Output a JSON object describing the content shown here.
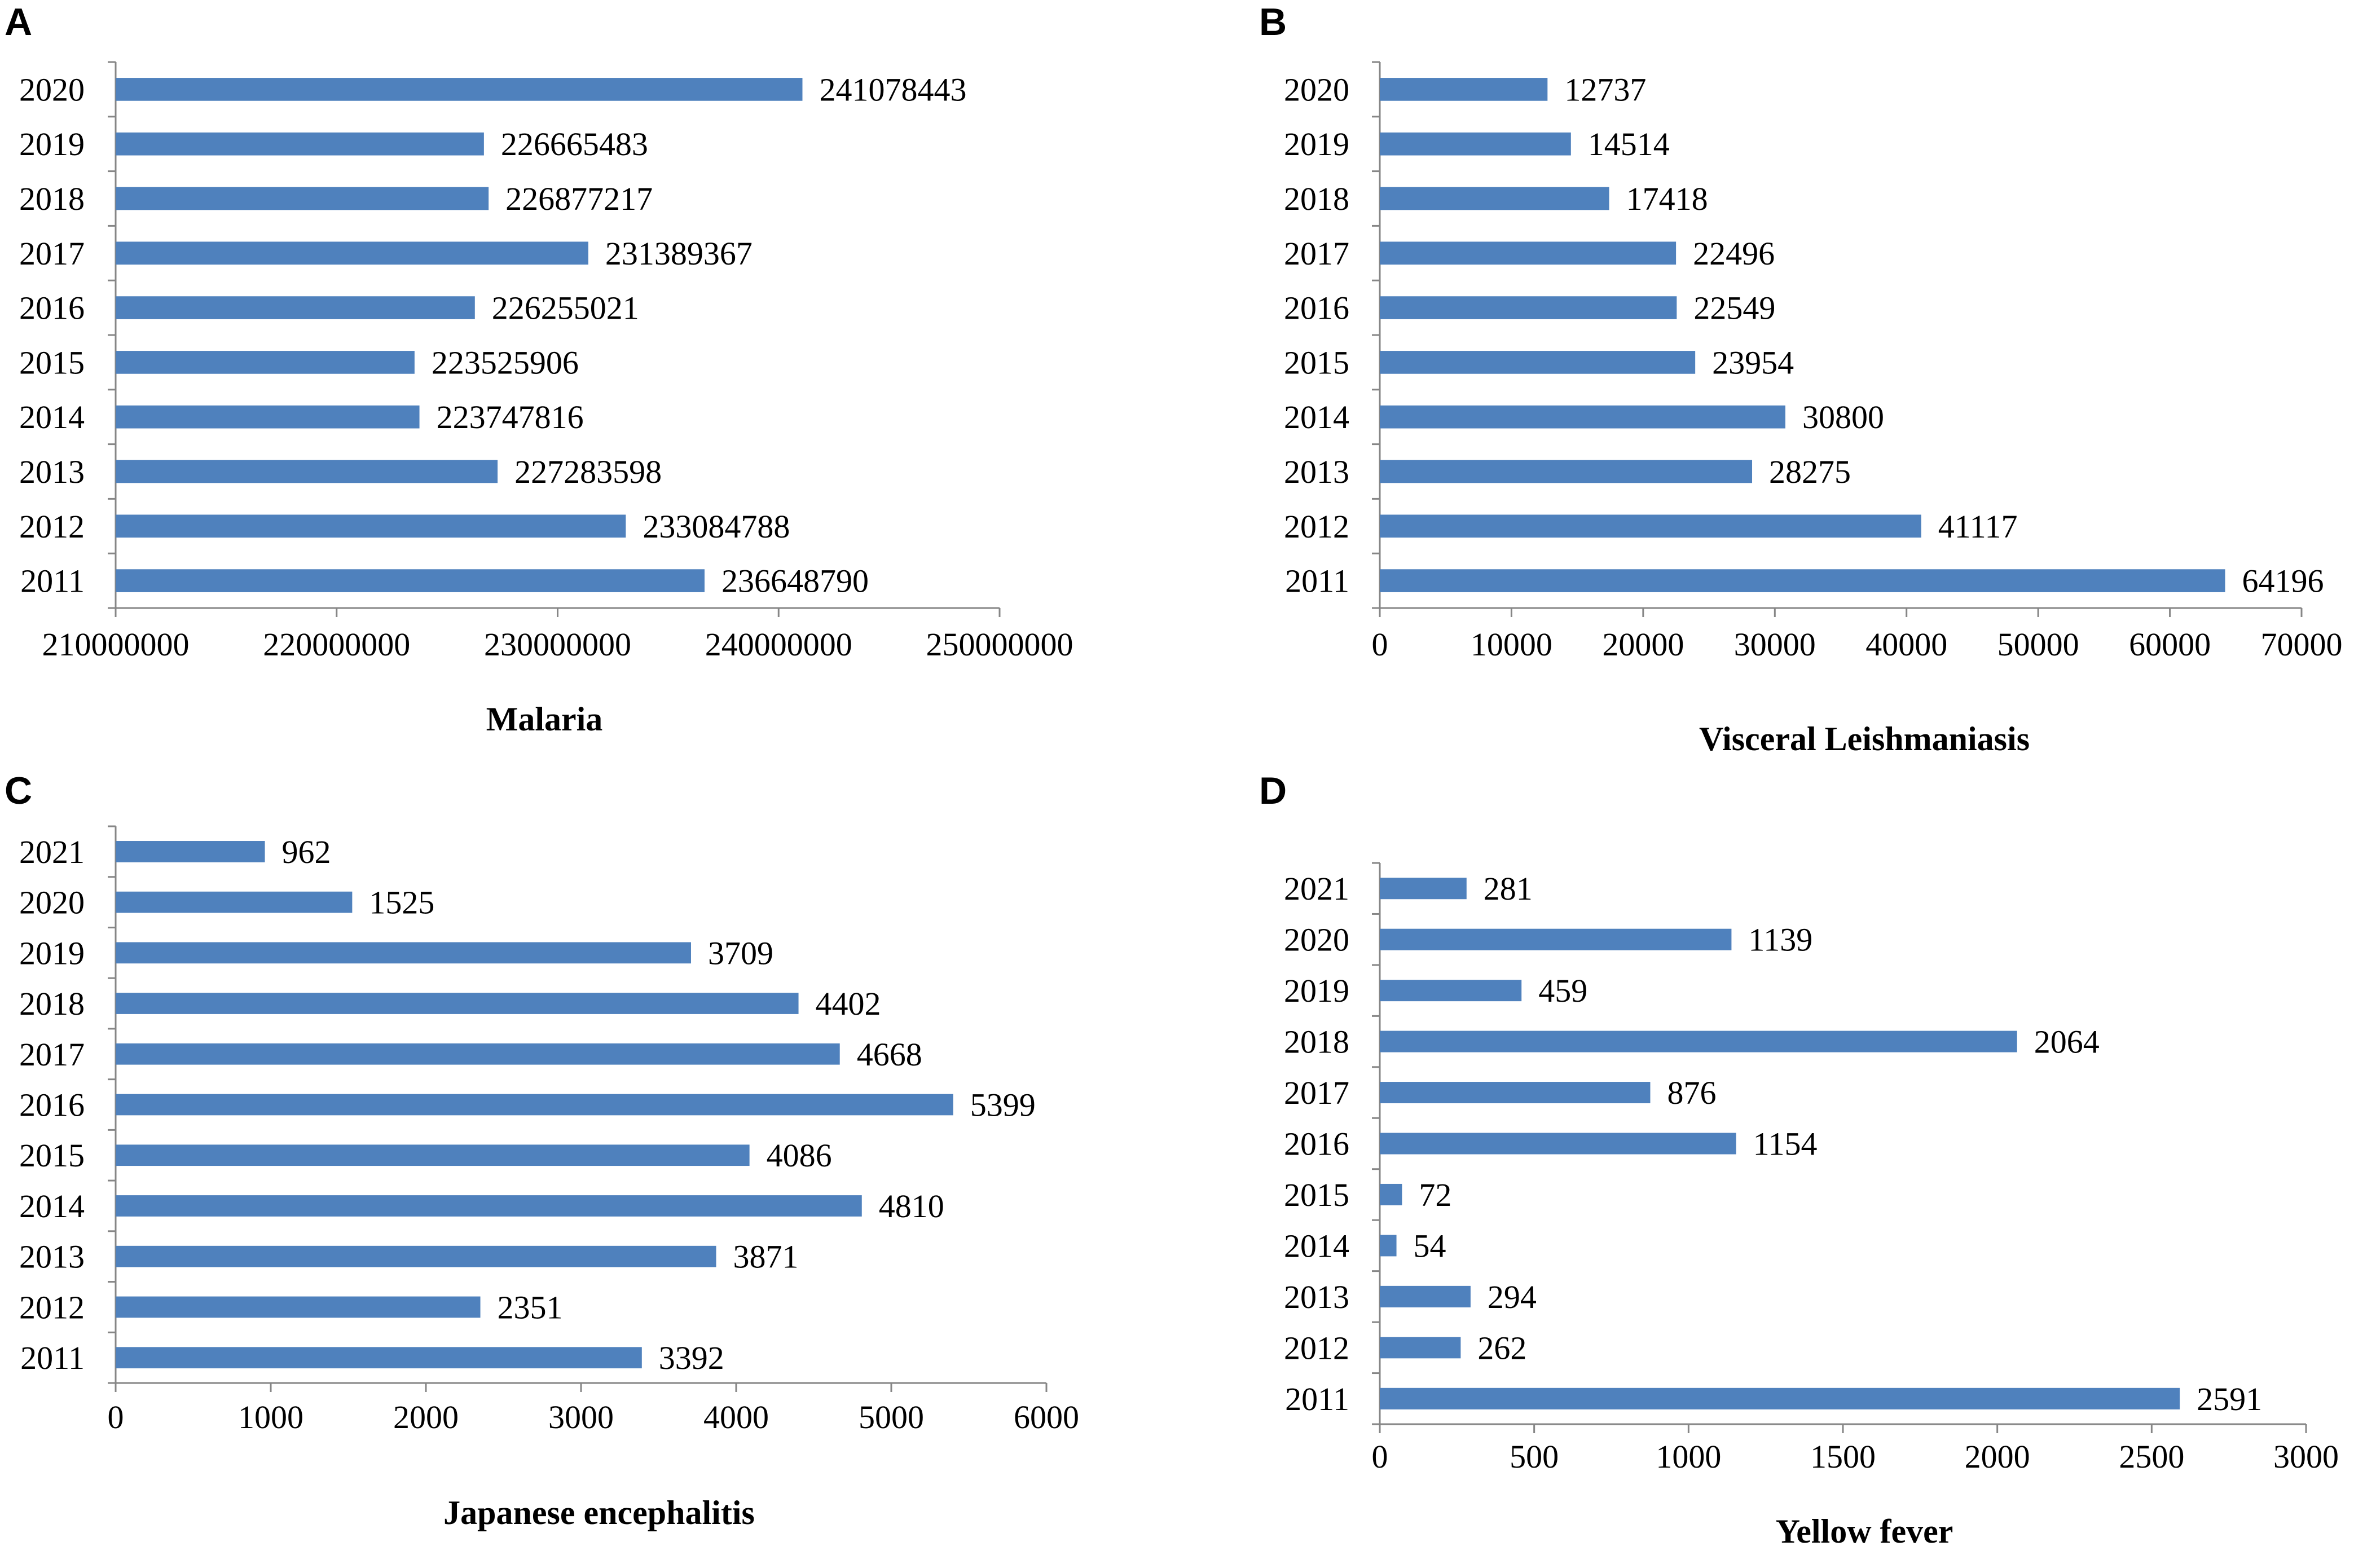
{
  "bar_color": "#4f81bd",
  "axis_color": "#868686",
  "chart_data": [
    {
      "panel_label": "A",
      "type": "bar",
      "orientation": "horizontal",
      "title": "Malaria",
      "categories": [
        "2020",
        "2019",
        "2018",
        "2017",
        "2016",
        "2015",
        "2014",
        "2013",
        "2012",
        "2011"
      ],
      "values": [
        241078443,
        226665483,
        226877217,
        231389367,
        226255021,
        223525906,
        223747816,
        227283598,
        233084788,
        236648790
      ],
      "value_labels": [
        "241078443",
        "226665483",
        "226877217",
        "231389367",
        "226255021",
        "223525906",
        "223747816",
        "227283598",
        "233084788",
        "236648790"
      ],
      "xlim": [
        210000000,
        250000000
      ],
      "xticks": [
        210000000,
        220000000,
        230000000,
        240000000,
        250000000
      ],
      "xtick_labels": [
        "210000000",
        "220000000",
        "230000000",
        "240000000",
        "250000000"
      ],
      "xlabel": "",
      "ylabel": "",
      "grid": false,
      "legend": "none"
    },
    {
      "panel_label": "B",
      "type": "bar",
      "orientation": "horizontal",
      "title": "Visceral Leishmaniasis",
      "categories": [
        "2020",
        "2019",
        "2018",
        "2017",
        "2016",
        "2015",
        "2014",
        "2013",
        "2012",
        "2011"
      ],
      "values": [
        12737,
        14514,
        17418,
        22496,
        22549,
        23954,
        30800,
        28275,
        41117,
        64196
      ],
      "value_labels": [
        "12737",
        "14514",
        "17418",
        "22496",
        "22549",
        "23954",
        "30800",
        "28275",
        "41117",
        "64196"
      ],
      "xlim": [
        0,
        70000
      ],
      "xticks": [
        0,
        10000,
        20000,
        30000,
        40000,
        50000,
        60000,
        70000
      ],
      "xtick_labels": [
        "0",
        "10000",
        "20000",
        "30000",
        "40000",
        "50000",
        "60000",
        "70000"
      ],
      "xlabel": "",
      "ylabel": "",
      "grid": false,
      "legend": "none"
    },
    {
      "panel_label": "C",
      "type": "bar",
      "orientation": "horizontal",
      "title": "Japanese encephalitis",
      "categories": [
        "2021",
        "2020",
        "2019",
        "2018",
        "2017",
        "2016",
        "2015",
        "2014",
        "2013",
        "2012",
        "2011"
      ],
      "values": [
        962,
        1525,
        3709,
        4402,
        4668,
        5399,
        4086,
        4810,
        3871,
        2351,
        3392
      ],
      "value_labels": [
        "962",
        "1525",
        "3709",
        "4402",
        "4668",
        "5399",
        "4086",
        "4810",
        "3871",
        "2351",
        "3392"
      ],
      "xlim": [
        0,
        6000
      ],
      "xticks": [
        0,
        1000,
        2000,
        3000,
        4000,
        5000,
        6000
      ],
      "xtick_labels": [
        "0",
        "1000",
        "2000",
        "3000",
        "4000",
        "5000",
        "6000"
      ],
      "xlabel": "",
      "ylabel": "",
      "grid": false,
      "legend": "none"
    },
    {
      "panel_label": "D",
      "type": "bar",
      "orientation": "horizontal",
      "title": "Yellow fever",
      "categories": [
        "2021",
        "2020",
        "2019",
        "2018",
        "2017",
        "2016",
        "2015",
        "2014",
        "2013",
        "2012",
        "2011"
      ],
      "values": [
        281,
        1139,
        459,
        2064,
        876,
        1154,
        72,
        54,
        294,
        262,
        2591
      ],
      "value_labels": [
        "281",
        "1139",
        "459",
        "2064",
        "876",
        "1154",
        "72",
        "54",
        "294",
        "262",
        "2591"
      ],
      "xlim": [
        0,
        3000
      ],
      "xticks": [
        0,
        500,
        1000,
        1500,
        2000,
        2500,
        3000
      ],
      "xtick_labels": [
        "0",
        "500",
        "1000",
        "1500",
        "2000",
        "2500",
        "3000"
      ],
      "xlabel": "",
      "ylabel": "",
      "grid": false,
      "legend": "none"
    }
  ]
}
